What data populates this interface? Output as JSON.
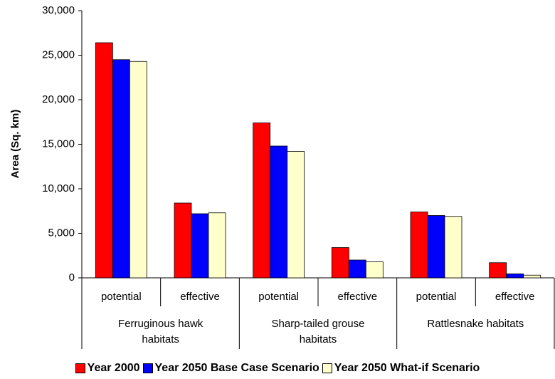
{
  "chart_data": {
    "type": "bar",
    "y_label": "Area (Sq. km)",
    "categories": [
      "potential",
      "effective",
      "potential",
      "effective",
      "potential",
      "effective"
    ],
    "group_labels": [
      "Ferruginous hawk habitats",
      "Sharp-tailed grouse habitats",
      "Rattlesnake habitats"
    ],
    "series": [
      {
        "name": "Year 2000",
        "color": "#ff0000",
        "values": [
          26400,
          8400,
          17400,
          3400,
          7400,
          1700
        ]
      },
      {
        "name": "Year 2050 Base Case Scenario",
        "color": "#0000ff",
        "values": [
          24500,
          7200,
          14800,
          2000,
          7000,
          450
        ]
      },
      {
        "name": "Year 2050 What-if Scenario",
        "color": "#ffffcc",
        "values": [
          24300,
          7300,
          14200,
          1800,
          6900,
          300
        ]
      }
    ],
    "ylim": [
      0,
      30000
    ],
    "yticks": [
      0,
      {
        "value": 5000,
        "label": "5,000"
      },
      {
        "value": 10000,
        "label": "10,000"
      },
      {
        "value": 15000,
        "label": "15,000"
      },
      {
        "value": 20000,
        "label": "20,000"
      },
      {
        "value": 25000,
        "label": "25,000"
      },
      {
        "value": 30000,
        "label": "30,000"
      }
    ]
  }
}
